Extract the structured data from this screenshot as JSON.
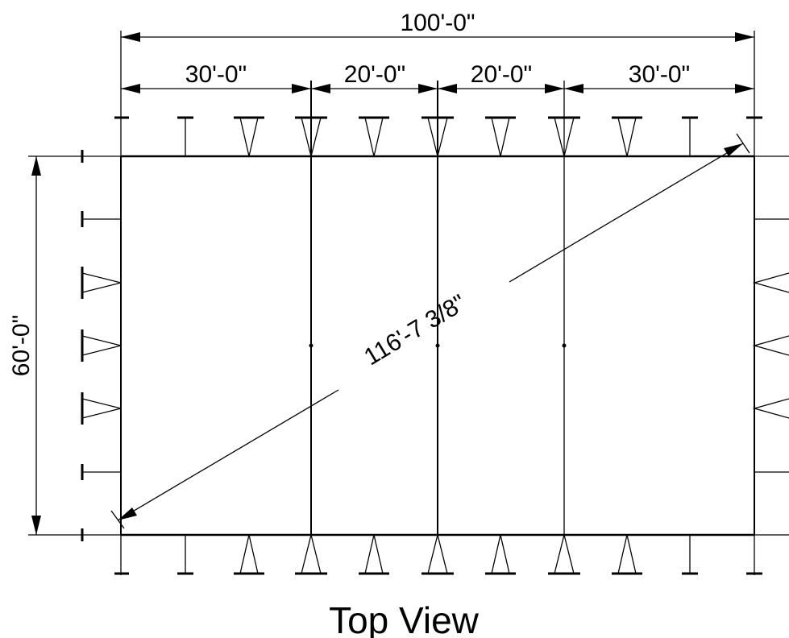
{
  "drawing": {
    "title": "Top View",
    "overall_width_dim": "100'-0\"",
    "bay_dims": [
      "30'-0\"",
      "20'-0\"",
      "20'-0\"",
      "30'-0\""
    ],
    "height_dim": "60'-0\"",
    "diagonal_dim": "116'-7 3/8\""
  }
}
